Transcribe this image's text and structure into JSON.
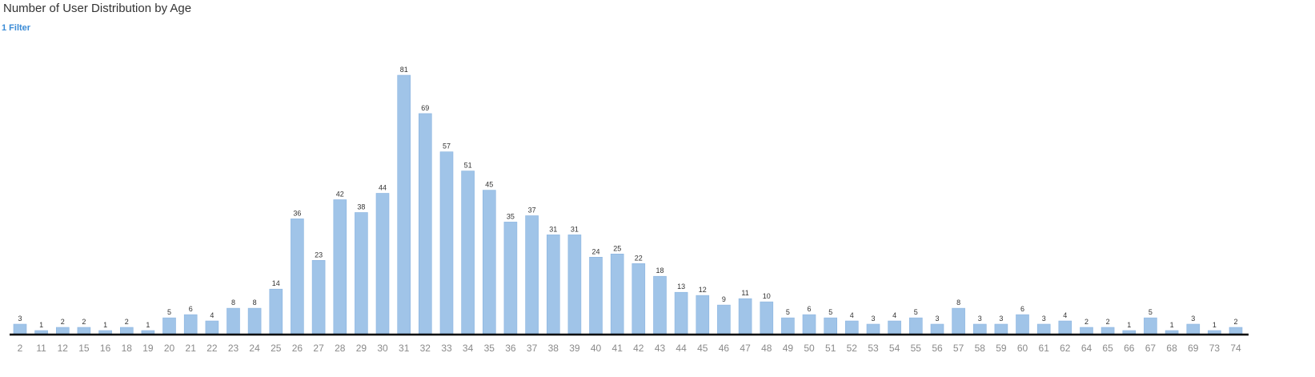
{
  "header": {
    "title": "Number of User Distribution by Age",
    "filter_label": "1 Filter"
  },
  "colors": {
    "bar": "#a0c4e8",
    "bar_stroke": "#8ab5e0",
    "axis": "#000000",
    "filter_link": "#3a8bd6"
  },
  "chart_data": {
    "type": "bar",
    "title": "Number of User Distribution by Age",
    "xlabel": "",
    "ylabel": "",
    "ylim": [
      0,
      81
    ],
    "grid": false,
    "data_labels": true,
    "categories": [
      "2",
      "11",
      "12",
      "15",
      "16",
      "18",
      "19",
      "20",
      "21",
      "22",
      "23",
      "24",
      "25",
      "26",
      "27",
      "28",
      "29",
      "30",
      "31",
      "32",
      "33",
      "34",
      "35",
      "36",
      "37",
      "38",
      "39",
      "40",
      "41",
      "42",
      "43",
      "44",
      "45",
      "46",
      "47",
      "48",
      "49",
      "50",
      "51",
      "52",
      "53",
      "54",
      "55",
      "56",
      "57",
      "58",
      "59",
      "60",
      "61",
      "62",
      "64",
      "65",
      "66",
      "67",
      "68",
      "69",
      "73",
      "74"
    ],
    "values": [
      3,
      1,
      2,
      2,
      1,
      2,
      1,
      5,
      6,
      4,
      8,
      8,
      14,
      36,
      23,
      42,
      38,
      44,
      81,
      69,
      57,
      51,
      45,
      35,
      37,
      31,
      31,
      24,
      25,
      22,
      18,
      13,
      12,
      9,
      11,
      10,
      5,
      6,
      5,
      4,
      3,
      4,
      5,
      3,
      8,
      3,
      3,
      6,
      3,
      4,
      2,
      2,
      1,
      5,
      1,
      3,
      1,
      2
    ]
  }
}
